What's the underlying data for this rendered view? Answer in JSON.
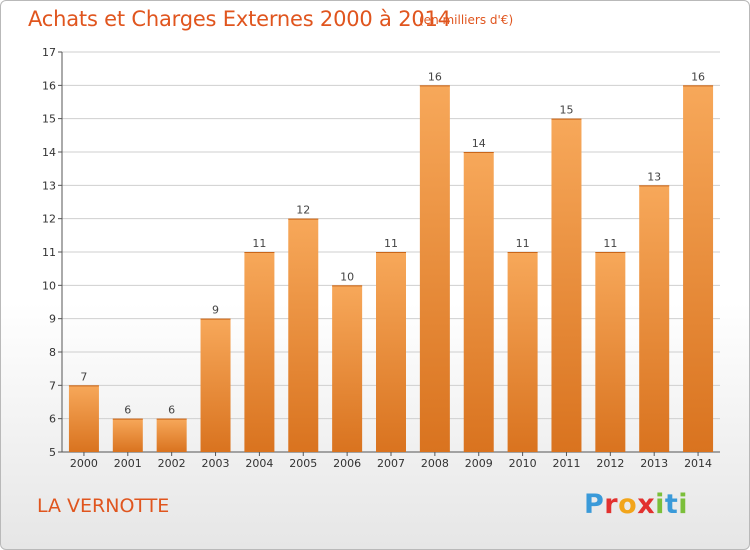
{
  "header": {
    "title": "Achats et Charges Externes 2000 à 2014",
    "subtitle": "(en milliers d'€)"
  },
  "footer": {
    "commune": "LA VERNOTTE",
    "logo_text": "Proxiti",
    "logo_letters": [
      {
        "ch": "P",
        "color": "#3a9ad9"
      },
      {
        "ch": "r",
        "color": "#e2312f"
      },
      {
        "ch": "o",
        "color": "#f2a51a"
      },
      {
        "ch": "x",
        "color": "#e2312f"
      },
      {
        "ch": "i",
        "color": "#7bbf3a"
      },
      {
        "ch": "t",
        "color": "#3a9ad9"
      },
      {
        "ch": "i",
        "color": "#7bbf3a"
      }
    ]
  },
  "colors": {
    "text_accent": "#e0551e",
    "bar_light": "#f7a85a",
    "bar_dark": "#d9731f",
    "grid": "#cfcfcf"
  },
  "chart_data": {
    "type": "bar",
    "title": "Achats et Charges Externes 2000 à 2014",
    "subtitle": "(en milliers d'€)",
    "categories": [
      "2000",
      "2001",
      "2002",
      "2003",
      "2004",
      "2005",
      "2006",
      "2007",
      "2008",
      "2009",
      "2010",
      "2011",
      "2012",
      "2013",
      "2014"
    ],
    "values": [
      7,
      6,
      6,
      9,
      11,
      12,
      10,
      11,
      16,
      14,
      11,
      15,
      11,
      13,
      16
    ],
    "ylim": [
      5,
      17
    ],
    "yticks": [
      5,
      6,
      7,
      8,
      9,
      10,
      11,
      12,
      13,
      14,
      15,
      16,
      17
    ],
    "grid": true,
    "data_labels": true
  }
}
